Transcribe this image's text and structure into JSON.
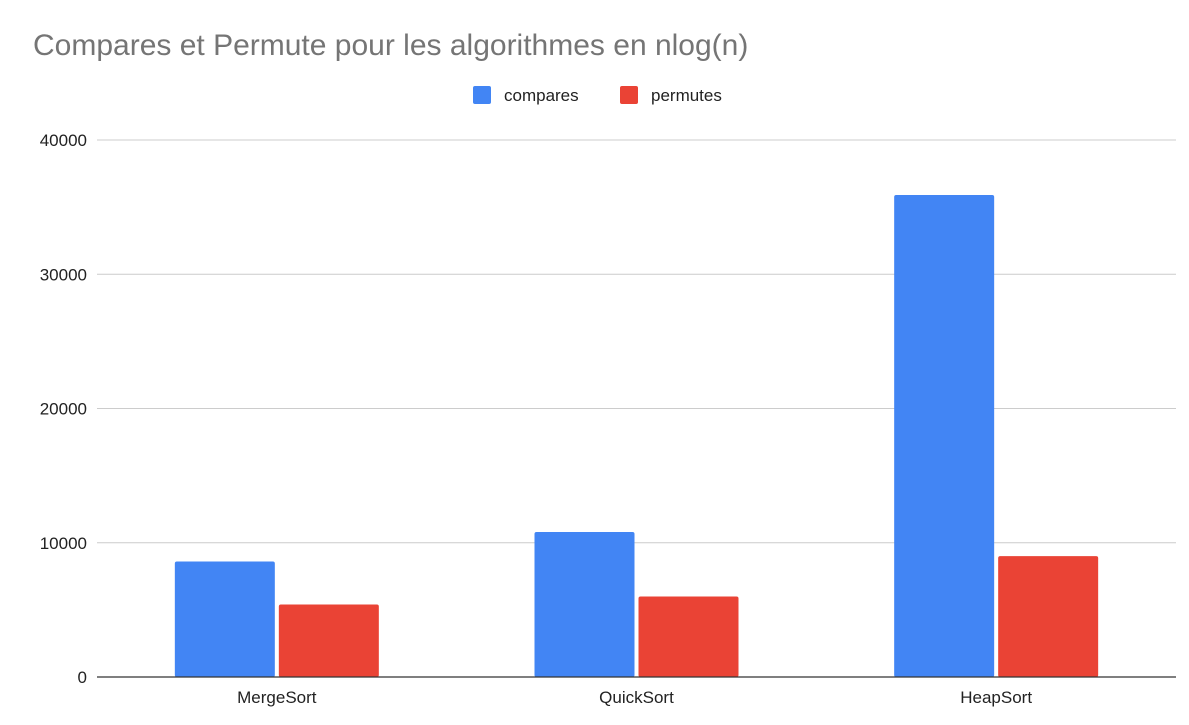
{
  "chart_data": {
    "type": "bar",
    "title": "Compares et Permute pour les algorithmes en nlog(n)",
    "xlabel": "",
    "ylabel": "",
    "categories": [
      "MergeSort",
      "QuickSort",
      "HeapSort"
    ],
    "series": [
      {
        "name": "compares",
        "color": "#4285f4",
        "values": [
          8600,
          10800,
          35900
        ]
      },
      {
        "name": "permutes",
        "color": "#ea4335",
        "values": [
          5400,
          6000,
          9000
        ]
      }
    ],
    "ylim": [
      0,
      40000
    ],
    "yticks": [
      0,
      10000,
      20000,
      30000,
      40000
    ],
    "ytick_labels": [
      "0",
      "10000",
      "20000",
      "30000",
      "40000"
    ],
    "grid": true,
    "legend_position": "top-center"
  }
}
